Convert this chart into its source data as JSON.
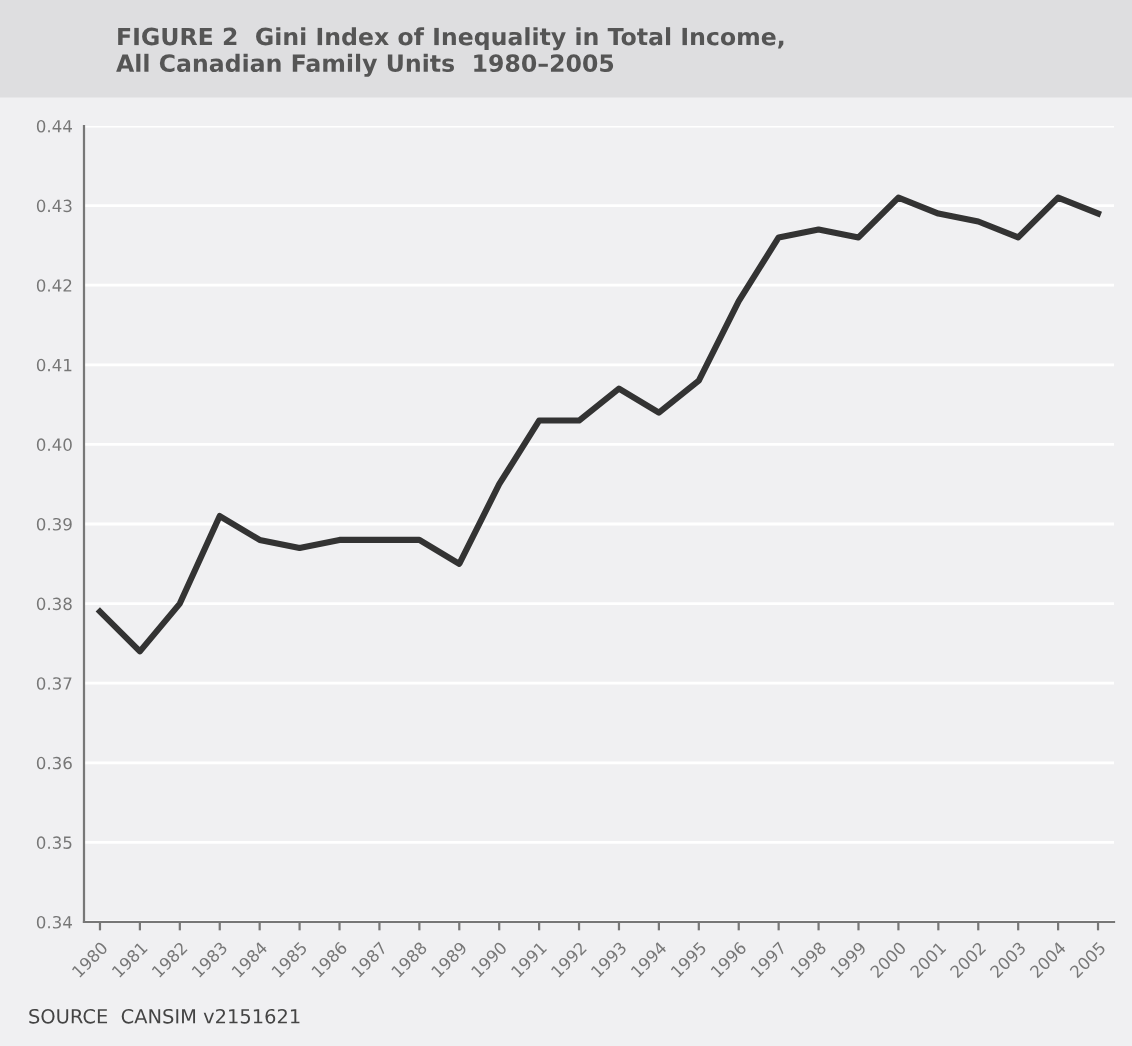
{
  "chart_data": {
    "type": "line",
    "title": "FIGURE 2  Gini Index of Inequality in Total Income,\nAll Canadian Family Units  1980–2005",
    "categories": [
      "1980",
      "1981",
      "1982",
      "1983",
      "1984",
      "1985",
      "1986",
      "1987",
      "1988",
      "1989",
      "1990",
      "1991",
      "1992",
      "1993",
      "1994",
      "1995",
      "1996",
      "1997",
      "1998",
      "1999",
      "2000",
      "2001",
      "2002",
      "2003",
      "2004",
      "2005"
    ],
    "series": [
      {
        "color": "#333333",
        "values": [
          0.379,
          0.374,
          0.38,
          0.391,
          0.388,
          0.387,
          0.388,
          0.388,
          0.388,
          0.385,
          0.395,
          0.403,
          0.403,
          0.407,
          0.404,
          0.408,
          0.418,
          0.426,
          0.427,
          0.426,
          0.431,
          0.429,
          0.428,
          0.426,
          0.431,
          0.429
        ]
      }
    ],
    "ylim": [
      0.34,
      0.44
    ],
    "yticks": [
      0.34,
      0.35,
      0.36,
      0.37,
      0.38,
      0.39,
      {
        "value": 0.4,
        "label": "0.40"
      },
      0.41,
      0.42,
      0.43,
      0.44
    ],
    "grid": "y",
    "legend": false,
    "marker": "none",
    "line_style": "solid",
    "annotations": [
      "SOURCE  CANSIM v2151621"
    ]
  }
}
